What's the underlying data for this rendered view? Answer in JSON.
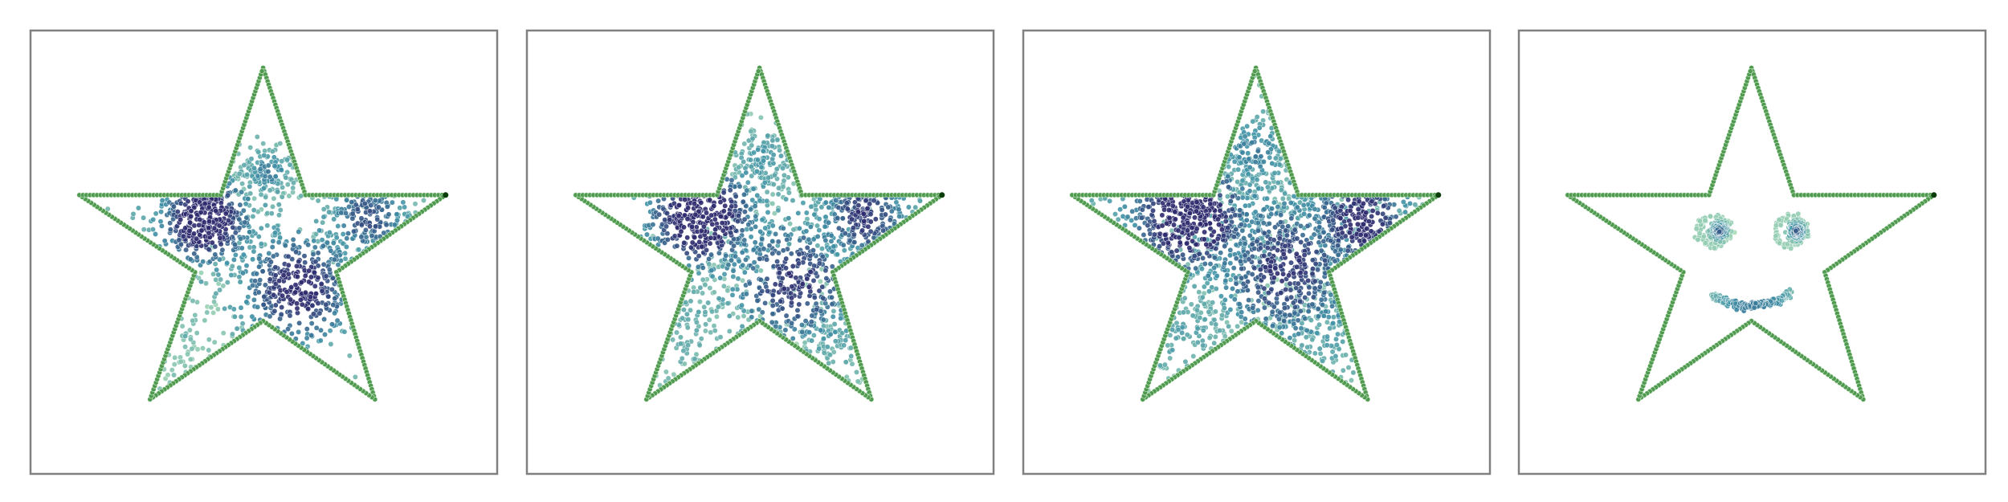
{
  "outline_color": "#4f9a4f",
  "point_colors": [
    "#a8dcb5",
    "#3f92a6",
    "#2e2a6e"
  ]
}
